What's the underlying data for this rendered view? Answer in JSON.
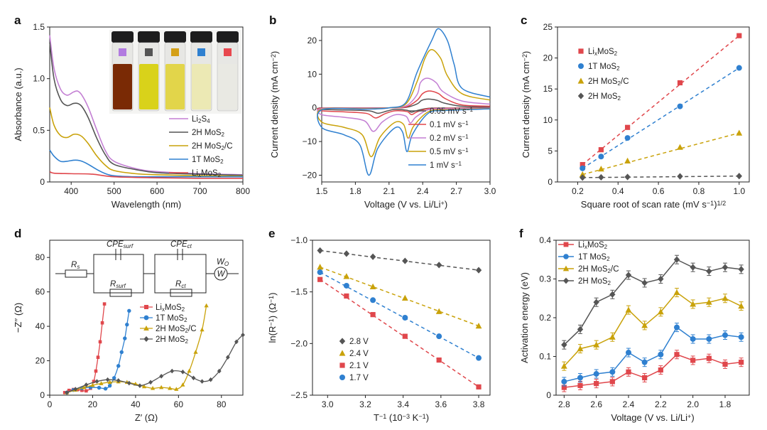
{
  "colors": {
    "red": "#e0474c",
    "blue": "#2f80d0",
    "gold": "#c9a20a",
    "dark": "#555555",
    "purple": "#c37fd3"
  },
  "panels": [
    {
      "letter": "a",
      "chart_data": {
        "type": "line",
        "title": "",
        "xlabel": "Wavelength (nm)",
        "ylabel": "Absorbance (a.u.)",
        "xlim": [
          350,
          800
        ],
        "ylim": [
          0,
          1.5
        ],
        "xticks": [
          "400",
          "500",
          "600",
          "700",
          "800"
        ],
        "yticks": [
          "0",
          "0.5",
          "1.0",
          "1.5"
        ],
        "inset": "photo of five vials with colored caps",
        "series": [
          {
            "name": "Li2S4",
            "color": "purple",
            "x": [
              350,
              360,
              375,
              390,
              405,
              415,
              425,
              440,
              460,
              480,
              500,
              550,
              600,
              700,
              800
            ],
            "y": [
              1.42,
              1.1,
              0.9,
              0.84,
              0.87,
              0.88,
              0.84,
              0.72,
              0.5,
              0.3,
              0.2,
              0.13,
              0.1,
              0.08,
              0.07
            ]
          },
          {
            "name": "2H MoS2",
            "color": "dark",
            "x": [
              350,
              360,
              375,
              390,
              405,
              415,
              425,
              440,
              460,
              480,
              500,
              550,
              600,
              700,
              800
            ],
            "y": [
              1.35,
              1.0,
              0.8,
              0.74,
              0.76,
              0.76,
              0.73,
              0.62,
              0.42,
              0.26,
              0.17,
              0.12,
              0.09,
              0.075,
              0.065
            ]
          },
          {
            "name": "2H MoS2/C",
            "color": "gold",
            "x": [
              350,
              360,
              375,
              390,
              405,
              415,
              425,
              440,
              460,
              480,
              500,
              550,
              600,
              700,
              800
            ],
            "y": [
              0.72,
              0.55,
              0.45,
              0.43,
              0.46,
              0.46,
              0.44,
              0.37,
              0.25,
              0.16,
              0.11,
              0.08,
              0.07,
              0.06,
              0.055
            ]
          },
          {
            "name": "1T MoS2",
            "color": "blue",
            "x": [
              350,
              360,
              375,
              390,
              405,
              415,
              425,
              440,
              460,
              480,
              500,
              550,
              600,
              700,
              800
            ],
            "y": [
              0.31,
              0.25,
              0.2,
              0.2,
              0.21,
              0.21,
              0.2,
              0.17,
              0.12,
              0.08,
              0.06,
              0.05,
              0.05,
              0.05,
              0.05
            ]
          },
          {
            "name": "LixMoS2",
            "color": "red",
            "x": [
              350,
              360,
              400,
              450,
              500,
              600,
              700,
              800
            ],
            "y": [
              0.1,
              0.085,
              0.08,
              0.075,
              0.05,
              0.04,
              0.035,
              0.035
            ]
          }
        ]
      }
    },
    {
      "letter": "b",
      "chart_data": {
        "type": "line",
        "title": "",
        "xlabel": "Voltage (V vs. Li/Li+)",
        "ylabel": "Current density (mA cm-2)",
        "xlim": [
          1.5,
          3.0
        ],
        "ylim": [
          -22,
          24
        ],
        "xticks": [
          "1.5",
          "1.8",
          "2.1",
          "2.4",
          "2.7",
          "3.0"
        ],
        "yticks": [
          "-20",
          "-10",
          "0",
          "10",
          "20"
        ],
        "series": [
          {
            "name": "0.05 mV s-1",
            "color": "dark",
            "cathodic_peaks": [
              [
                2.0,
                -1.6
              ],
              [
                2.3,
                -1.3
              ]
            ],
            "anodic_peak": [
              2.45,
              2.6
            ]
          },
          {
            "name": "0.1 mV s-1",
            "color": "red",
            "cathodic_peaks": [
              [
                1.98,
                -3.0
              ],
              [
                2.3,
                -2.0
              ]
            ],
            "anodic_peak": [
              2.46,
              5.0
            ]
          },
          {
            "name": "0.2 mV s-1",
            "color": "purple",
            "cathodic_peaks": [
              [
                1.96,
                -7.0
              ],
              [
                2.29,
                -4.5
              ]
            ],
            "anodic_peak": [
              2.44,
              8.8
            ]
          },
          {
            "name": "0.5 mV s-1",
            "color": "gold",
            "cathodic_peaks": [
              [
                1.94,
                -14.5
              ],
              [
                2.27,
                -9.0
              ]
            ],
            "anodic_peak": [
              2.48,
              17.3
            ]
          },
          {
            "name": "1 mV s-1",
            "color": "blue",
            "cathodic_peaks": [
              [
                1.92,
                -20.0
              ],
              [
                2.26,
                -13.0
              ]
            ],
            "anodic_peak": [
              2.54,
              23.5
            ]
          }
        ]
      }
    },
    {
      "letter": "c",
      "chart_data": {
        "type": "scatter",
        "title": "",
        "xlabel": "Square root of scan rate (mV s-1)1/2",
        "ylabel": "Current density (mA cm-2)",
        "xlim": [
          0.1,
          1.05
        ],
        "ylim": [
          0,
          25
        ],
        "xticks": [
          "0.2",
          "0.4",
          "0.6",
          "0.8",
          "1.0"
        ],
        "yticks": [
          "0",
          "5",
          "10",
          "15",
          "20",
          "25"
        ],
        "x": [
          0.224,
          0.316,
          0.447,
          0.707,
          1.0
        ],
        "series": [
          {
            "name": "LixMoS2",
            "color": "red",
            "marker": "square",
            "values": [
              2.8,
              5.2,
              8.8,
              16.0,
              23.6
            ]
          },
          {
            "name": "1T MoS2",
            "color": "blue",
            "marker": "circle",
            "values": [
              2.2,
              4.1,
              7.1,
              12.2,
              18.4
            ]
          },
          {
            "name": "2H MoS2/C",
            "color": "gold",
            "marker": "triangle",
            "values": [
              1.2,
              2.1,
              3.4,
              5.6,
              7.9
            ]
          },
          {
            "name": "2H MoS2",
            "color": "dark",
            "marker": "diamond",
            "values": [
              0.7,
              0.75,
              0.8,
              0.9,
              0.95
            ]
          }
        ]
      }
    },
    {
      "letter": "d",
      "chart_data": {
        "type": "scatter",
        "title": "",
        "xlabel": "Z′ (Ω)",
        "ylabel": "−Z′′ (Ω)",
        "xlim": [
          0,
          90
        ],
        "ylim": [
          0,
          90
        ],
        "xticks": [
          "0",
          "20",
          "40",
          "60",
          "80"
        ],
        "yticks": [
          "0",
          "20",
          "40",
          "60",
          "80"
        ],
        "circuit_labels": [
          "Rs",
          "CPEsurf",
          "Rsurf",
          "CPEct",
          "Rct",
          "WO",
          "W"
        ],
        "series": [
          {
            "name": "LixMoS2",
            "color": "red",
            "marker": "square",
            "x": [
              7,
              9,
              11,
              13,
              15,
              17,
              19,
              20.5,
              21.5,
              22.5,
              23.5,
              24.5,
              25.5
            ],
            "y": [
              1.5,
              2.8,
              3.3,
              3.2,
              2.8,
              2.5,
              4,
              8,
              14,
              22,
              31,
              42,
              53
            ]
          },
          {
            "name": "1T MoS2",
            "color": "blue",
            "marker": "circle",
            "x": [
              8,
              11,
              15,
              19,
              23,
              26,
              28,
              30,
              32,
              33.5,
              35,
              36,
              37
            ],
            "y": [
              1.5,
              3,
              4,
              4.5,
              4.3,
              3.8,
              5.5,
              10,
              17,
              25,
              33,
              41,
              49
            ]
          },
          {
            "name": "2H MoS2/C",
            "color": "gold",
            "marker": "triangle",
            "x": [
              8,
              12,
              16,
              20,
              24,
              28,
              32,
              36,
              40,
              44,
              48,
              52,
              56,
              59,
              62,
              65,
              68,
              71,
              73
            ],
            "y": [
              1.5,
              3,
              4.5,
              5.8,
              6.8,
              7.5,
              7.8,
              7.5,
              6.5,
              5,
              4,
              4.5,
              4,
              3.5,
              6,
              14,
              25,
              38,
              52
            ]
          },
          {
            "name": "2H MoS2",
            "color": "dark",
            "marker": "diamond",
            "x": [
              8,
              12,
              17,
              22,
              27,
              32,
              37,
              42,
              47,
              52,
              57,
              62,
              67,
              71,
              75,
              79,
              83,
              87,
              90
            ],
            "y": [
              1.5,
              3.5,
              6,
              8,
              9,
              8.5,
              7,
              5.5,
              7.5,
              11,
              14,
              13.5,
              10,
              8,
              9,
              14,
              22,
              31,
              35
            ]
          }
        ]
      }
    },
    {
      "letter": "e",
      "chart_data": {
        "type": "scatter",
        "title": "",
        "xlabel": "T−1 (10−3 K−1)",
        "ylabel": "ln(R−1) (Ω−1)",
        "xlim": [
          2.92,
          3.86
        ],
        "ylim": [
          -2.5,
          -1.0
        ],
        "xticks": [
          "3.0",
          "3.2",
          "3.4",
          "3.6",
          "3.8"
        ],
        "yticks": [
          "-2.5",
          "-2.0",
          "-1.5",
          "-1.0"
        ],
        "x": [
          2.96,
          3.1,
          3.24,
          3.41,
          3.59,
          3.8
        ],
        "series": [
          {
            "name": "2.8 V",
            "color": "dark",
            "marker": "diamond",
            "values": [
              -1.1,
              -1.13,
              -1.16,
              -1.2,
              -1.24,
              -1.29
            ]
          },
          {
            "name": "2.4 V",
            "color": "gold",
            "marker": "triangle",
            "values": [
              -1.26,
              -1.35,
              -1.45,
              -1.56,
              -1.69,
              -1.83
            ]
          },
          {
            "name": "2.1 V",
            "color": "red",
            "marker": "square",
            "values": [
              -1.38,
              -1.54,
              -1.72,
              -1.93,
              -2.16,
              -2.42
            ]
          },
          {
            "name": "1.7 V",
            "color": "blue",
            "marker": "circle",
            "values": [
              -1.31,
              -1.44,
              -1.58,
              -1.75,
              -1.93,
              -2.14
            ]
          }
        ]
      }
    },
    {
      "letter": "f",
      "chart_data": {
        "type": "line",
        "title": "",
        "xlabel": "Voltage (V vs. Li/Li+)",
        "ylabel": "Activation energy (eV)",
        "xlim": [
          2.85,
          1.65
        ],
        "ylim": [
          0,
          0.4
        ],
        "xticks": [
          "2.8",
          "2.6",
          "2.4",
          "2.2",
          "2.0",
          "1.8"
        ],
        "yticks": [
          "0",
          "0.1",
          "0.2",
          "0.3",
          "0.4"
        ],
        "x": [
          2.8,
          2.7,
          2.6,
          2.5,
          2.4,
          2.3,
          2.2,
          2.1,
          2.0,
          1.9,
          1.8,
          1.7
        ],
        "series": [
          {
            "name": "LixMoS2",
            "color": "red",
            "marker": "square",
            "values": [
              0.02,
              0.025,
              0.03,
              0.035,
              0.06,
              0.045,
              0.065,
              0.105,
              0.09,
              0.095,
              0.08,
              0.085
            ]
          },
          {
            "name": "1T MoS2",
            "color": "blue",
            "marker": "circle",
            "values": [
              0.035,
              0.045,
              0.055,
              0.06,
              0.11,
              0.085,
              0.105,
              0.175,
              0.145,
              0.145,
              0.155,
              0.15
            ]
          },
          {
            "name": "2H MoS2/C",
            "color": "gold",
            "marker": "triangle",
            "values": [
              0.075,
              0.12,
              0.13,
              0.15,
              0.22,
              0.18,
              0.215,
              0.265,
              0.235,
              0.24,
              0.25,
              0.23
            ]
          },
          {
            "name": "2H MoS2",
            "color": "dark",
            "marker": "diamond",
            "values": [
              0.13,
              0.17,
              0.24,
              0.26,
              0.31,
              0.29,
              0.3,
              0.35,
              0.33,
              0.32,
              0.33,
              0.325
            ]
          }
        ]
      }
    }
  ]
}
